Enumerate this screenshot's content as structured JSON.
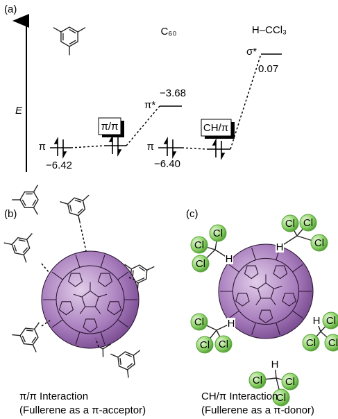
{
  "panel_a": {
    "label": "(a)",
    "axis_label": "E",
    "c60": "C₆₀",
    "chcl3": "H–CCl₃",
    "levels": [
      {
        "symbol": "π",
        "value": "−6.42"
      },
      {
        "symbol": "π*",
        "value": "−3.68"
      },
      {
        "symbol": "π",
        "value": "−6.40"
      },
      {
        "symbol": "σ*",
        "value": "0.07"
      }
    ],
    "boxes": [
      "π/π",
      "CH/π"
    ]
  },
  "panel_b": {
    "label": "(b)",
    "caption": [
      "π/π Interaction",
      "(Fullerene as a π-acceptor)"
    ]
  },
  "panel_c": {
    "label": "(c)",
    "caption": [
      "CH/π Interaction",
      "(Fullerene as a π-donor)"
    ],
    "atoms": [
      "Cl",
      "Cl",
      "Cl",
      "H",
      "Cl",
      "Cl",
      "Cl",
      "H",
      "Cl",
      "Cl",
      "Cl",
      "H",
      "Cl",
      "Cl",
      "Cl",
      "H",
      "Cl",
      "Cl",
      "Cl",
      "H"
    ]
  }
}
